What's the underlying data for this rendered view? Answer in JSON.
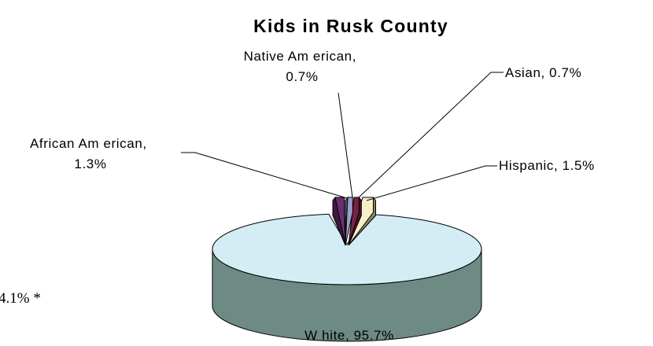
{
  "chart_data": {
    "type": "pie",
    "title": "Kids in Rusk County",
    "labels": [
      {
        "line1": "Native Am erican,",
        "line2": "0.7%"
      },
      {
        "line1": "Asian, 0.7%",
        "line2": ""
      },
      {
        "line1": "African Am erican,",
        "line2": "1.3%"
      },
      {
        "line1": "Hispanic, 1.5%",
        "line2": ""
      },
      {
        "line1": "W hite, 95.7%",
        "line2": ""
      }
    ],
    "slices": [
      {
        "name": "White",
        "value": 95.7,
        "top_color": "#D4EDF4",
        "side_color": "#6E8A84"
      },
      {
        "name": "Hispanic",
        "value": 1.5,
        "top_color": "#F6F0C8",
        "side_color": "#8C8560"
      },
      {
        "name": "Asian",
        "value": 0.7,
        "top_color": "#7A2242",
        "side_color": "#4A1429"
      },
      {
        "name": "Native American",
        "value": 0.7,
        "top_color": "#9AA0C8",
        "side_color": "#5A5F86"
      },
      {
        "name": "African American",
        "value": 1.3,
        "top_color": "#6B2E70",
        "side_color": "#3E1843"
      }
    ],
    "style": "3d-pie-exploded",
    "legend": "none"
  },
  "side_note": "4.1% *"
}
